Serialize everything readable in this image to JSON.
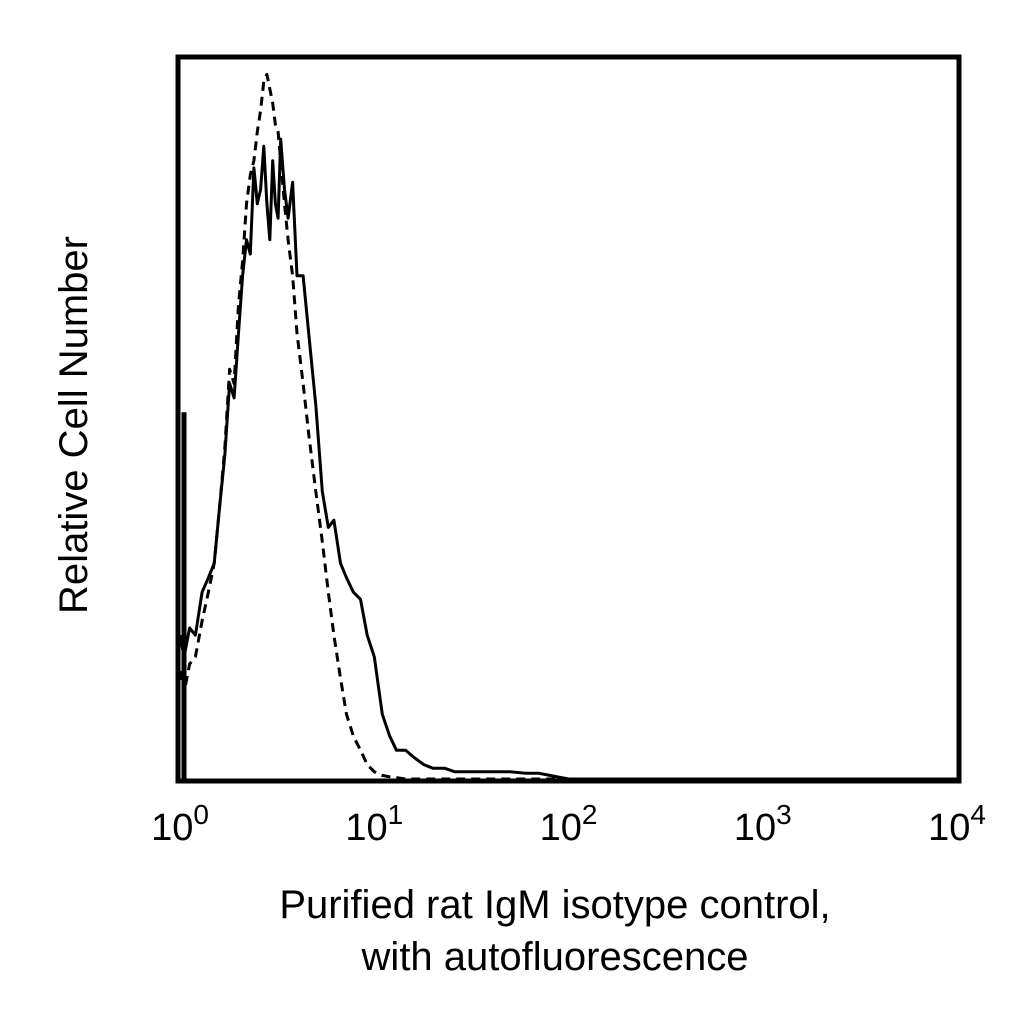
{
  "chart_data": {
    "type": "line",
    "ylabel": "Relative Cell Number",
    "xlabel_lines": [
      "Purified rat IgM isotype control,",
      "with autofluorescence"
    ],
    "x_scale": "log",
    "xlim": [
      1,
      10000
    ],
    "ylim": [
      0,
      100
    ],
    "x_ticks": [
      {
        "base": "10",
        "exp": "0"
      },
      {
        "base": "10",
        "exp": "1"
      },
      {
        "base": "10",
        "exp": "2"
      },
      {
        "base": "10",
        "exp": "3"
      },
      {
        "base": "10",
        "exp": "4"
      }
    ],
    "grid": false,
    "legend": "none",
    "series": [
      {
        "style": "solid",
        "color": "#000000",
        "x": [
          1.0,
          1.05,
          1.12,
          1.2,
          1.3,
          1.4,
          1.5,
          1.6,
          1.7,
          1.8,
          1.9,
          2.0,
          2.1,
          2.2,
          2.3,
          2.4,
          2.5,
          2.6,
          2.7,
          2.8,
          2.9,
          3.0,
          3.1,
          3.2,
          3.3,
          3.45,
          3.6,
          3.8,
          4.0,
          4.3,
          4.6,
          5.0,
          5.4,
          5.8,
          6.2,
          6.7,
          7.2,
          7.8,
          8.5,
          9.2,
          10.0,
          11.0,
          12.0,
          13.0,
          14.5,
          16,
          18,
          20,
          23,
          26,
          30,
          35,
          40,
          50,
          60,
          70,
          80,
          100,
          1000,
          10000
        ],
        "y": [
          20,
          17,
          21,
          20,
          26,
          28,
          30,
          38,
          45,
          55,
          53,
          62,
          70,
          75,
          73,
          85,
          80,
          82,
          88,
          80,
          75,
          86,
          80,
          78,
          89,
          82,
          78,
          83,
          70,
          70,
          62,
          52,
          40,
          35,
          36,
          30,
          28,
          26,
          25,
          20,
          17,
          9,
          6,
          4,
          4,
          3,
          2,
          1.5,
          1.5,
          1,
          1,
          1,
          1,
          1,
          0.8,
          0.8,
          0.5,
          0,
          0,
          0
        ]
      },
      {
        "style": "dashed",
        "color": "#000000",
        "x": [
          1.0,
          1.05,
          1.12,
          1.2,
          1.3,
          1.4,
          1.5,
          1.6,
          1.7,
          1.8,
          1.9,
          2.0,
          2.1,
          2.2,
          2.3,
          2.4,
          2.5,
          2.6,
          2.7,
          2.8,
          2.9,
          3.0,
          3.1,
          3.2,
          3.3,
          3.45,
          3.6,
          3.8,
          4.0,
          4.3,
          4.6,
          5.0,
          5.4,
          5.8,
          6.2,
          6.7,
          7.2,
          7.8,
          8.5,
          9.2,
          10.0,
          11.0,
          12.0,
          13.0,
          14.5,
          16,
          18,
          20,
          23,
          26,
          30,
          35,
          40,
          50,
          60,
          70,
          80,
          100,
          1000,
          10000
        ],
        "y": [
          15,
          12,
          16,
          17,
          22,
          26,
          30,
          38,
          46,
          57,
          55,
          66,
          72,
          80,
          84,
          86,
          90,
          93,
          97,
          98,
          96,
          94,
          91,
          90,
          86,
          80,
          75,
          70,
          62,
          55,
          48,
          40,
          33,
          26,
          20,
          14,
          9,
          6,
          4,
          2,
          1,
          0.5,
          0.3,
          0.2,
          0,
          0,
          0,
          0,
          0,
          0,
          0,
          0,
          0,
          0,
          0,
          0,
          0,
          0,
          0,
          0
        ]
      }
    ]
  }
}
